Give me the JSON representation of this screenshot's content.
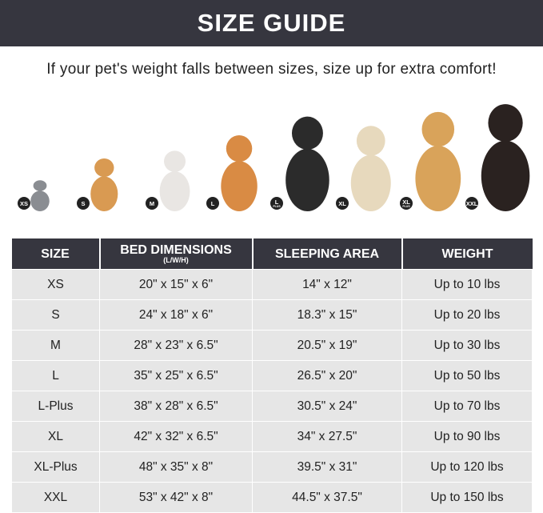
{
  "banner": {
    "title": "SIZE GUIDE"
  },
  "subtitle": "If your pet's weight falls between sizes, size up for extra comfort!",
  "pets": [
    {
      "badge": "XS",
      "badge_sub": "",
      "animal": "cat",
      "color": "#8a8d92"
    },
    {
      "badge": "S",
      "badge_sub": "",
      "animal": "pomeranian",
      "color": "#d99a52"
    },
    {
      "badge": "M",
      "badge_sub": "",
      "animal": "french-bulldog",
      "color": "#e9e6e3"
    },
    {
      "badge": "L",
      "badge_sub": "",
      "animal": "shiba-inu",
      "color": "#d98b44"
    },
    {
      "badge": "L",
      "badge_sub": "PLUS",
      "animal": "border-collie",
      "color": "#2b2b2b"
    },
    {
      "badge": "XL",
      "badge_sub": "",
      "animal": "labrador",
      "color": "#e7d9bd"
    },
    {
      "badge": "XL",
      "badge_sub": "PLUS",
      "animal": "golden-retriever",
      "color": "#d9a35a"
    },
    {
      "badge": "XXL",
      "badge_sub": "",
      "animal": "doberman",
      "color": "#2a2220"
    }
  ],
  "table": {
    "headers": [
      "SIZE",
      "BED DIMENSIONS",
      "SLEEPING AREA",
      "WEIGHT"
    ],
    "header_unit": "(L/W/H)",
    "rows": [
      [
        "XS",
        "20\" x 15\" x 6\"",
        "14\" x 12\"",
        "Up to 10 lbs"
      ],
      [
        "S",
        "24\" x 18\" x 6\"",
        "18.3\" x 15\"",
        "Up to 20 lbs"
      ],
      [
        "M",
        "28\" x 23\" x 6.5\"",
        "20.5\" x 19\"",
        "Up to 30 lbs"
      ],
      [
        "L",
        "35\" x 25\" x 6.5\"",
        "26.5\" x 20\"",
        "Up to 50 lbs"
      ],
      [
        "L-Plus",
        "38\" x 28\" x 6.5\"",
        "30.5\" x 24\"",
        "Up to 70 lbs"
      ],
      [
        "XL",
        "42\" x 32\" x 6.5\"",
        "34\" x 27.5\"",
        "Up to 90 lbs"
      ],
      [
        "XL-Plus",
        "48\" x 35\" x 8\"",
        "39.5\" x 31\"",
        "Up to 120 lbs"
      ],
      [
        "XXL",
        "53\" x 42\" x 8\"",
        "44.5\" x 37.5\"",
        "Up to 150 lbs"
      ]
    ]
  }
}
